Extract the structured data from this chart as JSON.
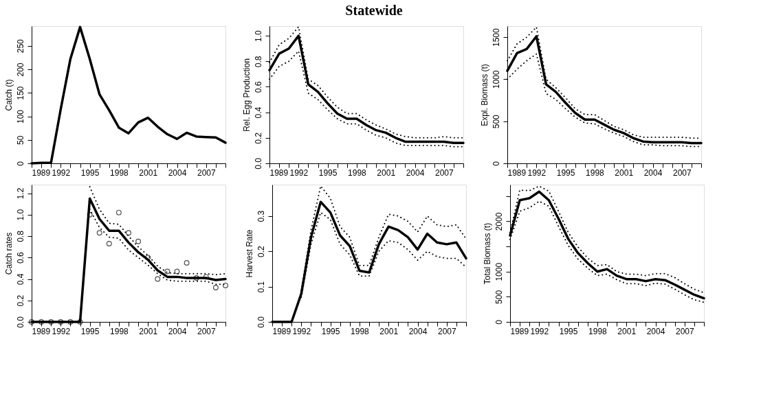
{
  "chart_data": [
    {
      "type": "other",
      "title": "Statewide"
    },
    {
      "type": "line",
      "ylabel": "Catch (t)",
      "xlim": [
        1989,
        2009
      ],
      "ylim": [
        0,
        292
      ],
      "yticks": [
        0,
        50,
        100,
        150,
        200,
        250
      ],
      "marker": "none",
      "line_style": "solid",
      "x": [
        1989,
        1990,
        1991,
        1992,
        1993,
        1994,
        1995,
        1996,
        1997,
        1998,
        1999,
        2000,
        2001,
        2002,
        2003,
        2004,
        2005,
        2006,
        2007,
        2008,
        2009
      ],
      "xticks": [
        1989,
        {
          "value": 1990,
          "label": null
        },
        {
          "value": 1991,
          "label": null
        },
        1992,
        {
          "value": 1993,
          "label": null
        },
        {
          "value": 1994,
          "label": null
        },
        1995,
        {
          "value": 1996,
          "label": null
        },
        {
          "value": 1997,
          "label": null
        },
        1998,
        {
          "value": 1999,
          "label": null
        },
        {
          "value": 2000,
          "label": null
        },
        2001,
        {
          "value": 2002,
          "label": null
        },
        {
          "value": 2003,
          "label": null
        },
        2004,
        {
          "value": 2005,
          "label": null
        },
        {
          "value": 2006,
          "label": null
        },
        2007,
        {
          "value": 2008,
          "label": null
        },
        {
          "value": 2009,
          "label": null
        }
      ],
      "series": [
        {
          "color": "#000000",
          "values": [
            0,
            1,
            1,
            115,
            222,
            290,
            222,
            147,
            113,
            76,
            64,
            87,
            97,
            78,
            62,
            52,
            65,
            57,
            56,
            55,
            44
          ]
        }
      ]
    },
    {
      "type": "line",
      "ylabel": "Rel. Egg Production",
      "xlim": [
        1989,
        2009
      ],
      "ylim": [
        0,
        1.076
      ],
      "yticks": [
        {
          "value": 0,
          "label": "0.0"
        },
        0.2,
        0.4,
        0.6,
        0.8,
        {
          "value": 1,
          "label": "1.0"
        }
      ],
      "marker": "none",
      "line_style": "solid",
      "x": [
        1989,
        1990,
        1991,
        1992,
        1993,
        1994,
        1995,
        1996,
        1997,
        1998,
        1999,
        2000,
        2001,
        2002,
        2003,
        2004,
        2005,
        2006,
        2007,
        2008,
        2009
      ],
      "xticks": [
        1989,
        {
          "value": 1990,
          "label": null
        },
        {
          "value": 1991,
          "label": null
        },
        1992,
        {
          "value": 1993,
          "label": null
        },
        {
          "value": 1994,
          "label": null
        },
        1995,
        {
          "value": 1996,
          "label": null
        },
        {
          "value": 1997,
          "label": null
        },
        1998,
        {
          "value": 1999,
          "label": null
        },
        {
          "value": 2000,
          "label": null
        },
        2001,
        {
          "value": 2002,
          "label": null
        },
        {
          "value": 2003,
          "label": null
        },
        2004,
        {
          "value": 2005,
          "label": null
        },
        {
          "value": 2006,
          "label": null
        },
        2007,
        {
          "value": 2008,
          "label": null
        },
        {
          "value": 2009,
          "label": null
        }
      ],
      "series": [
        {
          "color": "#000000",
          "line_style": "dotted",
          "values": [
            0.79,
            0.93,
            0.98,
            1.07,
            0.66,
            0.61,
            0.52,
            0.44,
            0.39,
            0.39,
            0.34,
            0.3,
            0.27,
            0.23,
            0.21,
            0.2,
            0.2,
            0.2,
            0.21,
            0.2,
            0.2
          ]
        },
        {
          "color": "#000000",
          "line_style": "dotted",
          "values": [
            0.66,
            0.76,
            0.8,
            0.88,
            0.55,
            0.5,
            0.42,
            0.35,
            0.31,
            0.31,
            0.26,
            0.22,
            0.2,
            0.16,
            0.14,
            0.14,
            0.14,
            0.14,
            0.14,
            0.13,
            0.13
          ]
        },
        {
          "color": "#000000",
          "values": [
            0.73,
            0.86,
            0.9,
            1.0,
            0.62,
            0.56,
            0.47,
            0.39,
            0.35,
            0.35,
            0.3,
            0.26,
            0.24,
            0.2,
            0.17,
            0.17,
            0.17,
            0.17,
            0.17,
            0.16,
            0.16
          ]
        }
      ]
    },
    {
      "type": "line",
      "ylabel": "Expl. Biomass (t)",
      "xlim": [
        1989,
        2009
      ],
      "ylim": [
        0,
        1632
      ],
      "yticks": [
        0,
        500,
        1000,
        1500
      ],
      "marker": "none",
      "line_style": "solid",
      "x": [
        1989,
        1990,
        1991,
        1992,
        1993,
        1994,
        1995,
        1996,
        1997,
        1998,
        1999,
        2000,
        2001,
        2002,
        2003,
        2004,
        2005,
        2006,
        2007,
        2008,
        2009
      ],
      "xticks": [
        1989,
        {
          "value": 1990,
          "label": null
        },
        {
          "value": 1991,
          "label": null
        },
        1992,
        {
          "value": 1993,
          "label": null
        },
        {
          "value": 1994,
          "label": null
        },
        1995,
        {
          "value": 1996,
          "label": null
        },
        {
          "value": 1997,
          "label": null
        },
        1998,
        {
          "value": 1999,
          "label": null
        },
        {
          "value": 2000,
          "label": null
        },
        2001,
        {
          "value": 2002,
          "label": null
        },
        {
          "value": 2003,
          "label": null
        },
        2004,
        {
          "value": 2005,
          "label": null
        },
        {
          "value": 2006,
          "label": null
        },
        2007,
        {
          "value": 2008,
          "label": null
        },
        {
          "value": 2009,
          "label": null
        }
      ],
      "series": [
        {
          "color": "#000000",
          "line_style": "dotted",
          "values": [
            1220,
            1420,
            1500,
            1620,
            1000,
            900,
            780,
            650,
            580,
            580,
            510,
            440,
            400,
            340,
            310,
            310,
            310,
            310,
            310,
            300,
            300
          ]
        },
        {
          "color": "#000000",
          "line_style": "dotted",
          "values": [
            1000,
            1120,
            1220,
            1300,
            830,
            760,
            650,
            550,
            480,
            470,
            410,
            360,
            320,
            260,
            220,
            220,
            210,
            210,
            210,
            200,
            200
          ]
        },
        {
          "color": "#000000",
          "values": [
            1100,
            1310,
            1360,
            1510,
            940,
            850,
            720,
            600,
            520,
            520,
            460,
            400,
            360,
            300,
            260,
            250,
            250,
            250,
            250,
            240,
            240
          ]
        }
      ]
    },
    {
      "type": "line",
      "ylabel": "Catch rates",
      "xlim": [
        1989,
        2009
      ],
      "ylim": [
        0,
        1.28
      ],
      "yticks": [
        {
          "value": 0,
          "label": "0.0"
        },
        0.2,
        0.4,
        0.6,
        0.8,
        {
          "value": 1,
          "label": "1.0"
        },
        1.2
      ],
      "line_style": "solid",
      "x": [
        1989,
        1990,
        1991,
        1992,
        1993,
        1994,
        1995,
        1996,
        1997,
        1998,
        1999,
        2000,
        2001,
        2002,
        2003,
        2004,
        2005,
        2006,
        2007,
        2008,
        2009
      ],
      "xticks": [
        1989,
        {
          "value": 1990,
          "label": null
        },
        {
          "value": 1991,
          "label": null
        },
        1992,
        {
          "value": 1993,
          "label": null
        },
        {
          "value": 1994,
          "label": null
        },
        1995,
        {
          "value": 1996,
          "label": null
        },
        {
          "value": 1997,
          "label": null
        },
        1998,
        {
          "value": 1999,
          "label": null
        },
        {
          "value": 2000,
          "label": null
        },
        2001,
        {
          "value": 2002,
          "label": null
        },
        {
          "value": 2003,
          "label": null
        },
        2004,
        {
          "value": 2005,
          "label": null
        },
        {
          "value": 2006,
          "label": null
        },
        2007,
        {
          "value": 2008,
          "label": null
        },
        {
          "value": 2009,
          "label": null
        }
      ],
      "series": [
        {
          "type": "line",
          "marker": "none",
          "color": "#000000",
          "line_style": "dotted",
          "values": [
            null,
            null,
            null,
            null,
            null,
            null,
            1.26,
            1.05,
            0.92,
            0.91,
            0.8,
            0.7,
            0.62,
            0.52,
            0.46,
            0.45,
            0.45,
            0.45,
            0.45,
            0.44,
            0.45
          ]
        },
        {
          "type": "line",
          "marker": "none",
          "color": "#000000",
          "line_style": "dotted",
          "values": [
            null,
            null,
            null,
            null,
            null,
            null,
            1.05,
            0.88,
            0.79,
            0.78,
            0.67,
            0.6,
            0.53,
            0.45,
            0.39,
            0.38,
            0.38,
            0.38,
            0.38,
            0.35,
            0.35
          ]
        },
        {
          "type": "line",
          "marker": "none",
          "color": "#000000",
          "values": [
            0,
            0,
            0,
            0,
            0,
            0,
            1.15,
            0.96,
            0.85,
            0.85,
            0.74,
            0.65,
            0.58,
            0.48,
            0.42,
            0.42,
            0.41,
            0.41,
            0.41,
            0.39,
            0.4
          ]
        },
        {
          "type": "scatter",
          "marker": "circle",
          "color": "#000000",
          "values": [
            0,
            0,
            0,
            0,
            0,
            0,
            1.0,
            0.83,
            0.73,
            1.02,
            0.83,
            0.75,
            0.6,
            0.4,
            0.47,
            0.47,
            0.55,
            0.41,
            0.42,
            0.32,
            0.34
          ]
        }
      ]
    },
    {
      "type": "line",
      "ylabel": "Harvest Rate",
      "xlim": [
        1989,
        2009
      ],
      "ylim": [
        0,
        0.389
      ],
      "yticks": [
        {
          "value": 0,
          "label": "0.0"
        },
        0.1,
        0.2,
        0.3
      ],
      "marker": "none",
      "line_style": "solid",
      "x": [
        1989,
        1990,
        1991,
        1992,
        1993,
        1994,
        1995,
        1996,
        1997,
        1998,
        1999,
        2000,
        2001,
        2002,
        2003,
        2004,
        2005,
        2006,
        2007,
        2008,
        2009
      ],
      "xticks": [
        1989,
        {
          "value": 1990,
          "label": null
        },
        {
          "value": 1991,
          "label": null
        },
        1992,
        {
          "value": 1993,
          "label": null
        },
        {
          "value": 1994,
          "label": null
        },
        1995,
        {
          "value": 1996,
          "label": null
        },
        {
          "value": 1997,
          "label": null
        },
        1998,
        {
          "value": 1999,
          "label": null
        },
        {
          "value": 2000,
          "label": null
        },
        2001,
        {
          "value": 2002,
          "label": null
        },
        {
          "value": 2003,
          "label": null
        },
        2004,
        {
          "value": 2005,
          "label": null
        },
        {
          "value": 2006,
          "label": null
        },
        2007,
        {
          "value": 2008,
          "label": null
        },
        {
          "value": 2009,
          "label": null
        }
      ],
      "series": [
        {
          "color": "#000000",
          "line_style": "dotted",
          "values": [
            null,
            null,
            null,
            0.09,
            0.26,
            0.385,
            0.35,
            0.27,
            0.24,
            0.16,
            0.16,
            0.24,
            0.305,
            0.3,
            0.285,
            0.255,
            0.3,
            0.275,
            0.27,
            0.275,
            0.235
          ]
        },
        {
          "color": "#000000",
          "line_style": "dotted",
          "values": [
            null,
            null,
            null,
            0.07,
            0.22,
            0.31,
            0.29,
            0.22,
            0.19,
            0.13,
            0.13,
            0.2,
            0.23,
            0.225,
            0.205,
            0.175,
            0.2,
            0.185,
            0.18,
            0.18,
            0.155
          ]
        },
        {
          "color": "#000000",
          "values": [
            0,
            0,
            0,
            0.08,
            0.24,
            0.34,
            0.31,
            0.245,
            0.215,
            0.145,
            0.14,
            0.22,
            0.27,
            0.26,
            0.24,
            0.205,
            0.25,
            0.225,
            0.22,
            0.225,
            0.18
          ]
        }
      ]
    },
    {
      "type": "line",
      "ylabel": "Total Biomass (t)",
      "xlim": [
        1989,
        2009
      ],
      "ylim": [
        0,
        2730
      ],
      "yticks": [
        0,
        500,
        1000,
        {
          "value": 1500,
          "label": null
        },
        2000,
        {
          "value": 2500,
          "label": null
        }
      ],
      "marker": "none",
      "line_style": "solid",
      "x": [
        1989,
        1990,
        1991,
        1992,
        1993,
        1994,
        1995,
        1996,
        1997,
        1998,
        1999,
        2000,
        2001,
        2002,
        2003,
        2004,
        2005,
        2006,
        2007,
        2008,
        2009
      ],
      "xticks": [
        1989,
        {
          "value": 1990,
          "label": null
        },
        {
          "value": 1991,
          "label": null
        },
        1992,
        {
          "value": 1993,
          "label": null
        },
        {
          "value": 1994,
          "label": null
        },
        1995,
        {
          "value": 1996,
          "label": null
        },
        {
          "value": 1997,
          "label": null
        },
        1998,
        {
          "value": 1999,
          "label": null
        },
        {
          "value": 2000,
          "label": null
        },
        2001,
        {
          "value": 2002,
          "label": null
        },
        {
          "value": 2003,
          "label": null
        },
        2004,
        {
          "value": 2005,
          "label": null
        },
        {
          "value": 2006,
          "label": null
        },
        2007,
        {
          "value": 2008,
          "label": null
        },
        {
          "value": 2009,
          "label": null
        }
      ],
      "series": [
        {
          "color": "#000000",
          "line_style": "dotted",
          "values": [
            1780,
            2620,
            2610,
            2700,
            2600,
            2200,
            1780,
            1490,
            1270,
            1120,
            1140,
            1000,
            950,
            950,
            920,
            960,
            960,
            880,
            760,
            650,
            580
          ]
        },
        {
          "color": "#000000",
          "line_style": "dotted",
          "values": [
            1640,
            2200,
            2270,
            2400,
            2300,
            1900,
            1520,
            1250,
            1070,
            920,
            950,
            840,
            760,
            760,
            720,
            770,
            750,
            650,
            540,
            440,
            390
          ]
        },
        {
          "color": "#000000",
          "values": [
            1720,
            2420,
            2460,
            2590,
            2420,
            2050,
            1650,
            1370,
            1170,
            1000,
            1050,
            920,
            850,
            850,
            810,
            850,
            830,
            740,
            640,
            540,
            470
          ]
        }
      ]
    }
  ]
}
